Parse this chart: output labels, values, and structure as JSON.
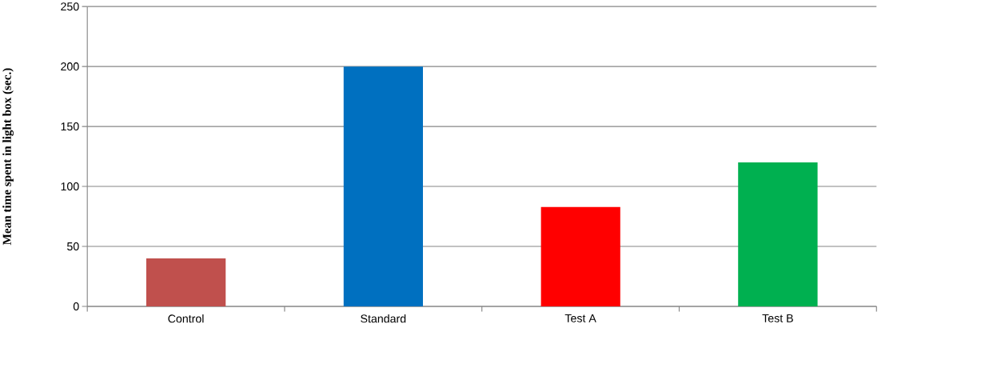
{
  "chart_data": {
    "type": "bar",
    "ylabel": "Mean  time spent  in light box (sec.)",
    "categories": [
      "Control",
      "Standard",
      "Test A",
      "Test B"
    ],
    "values": [
      40,
      200,
      83,
      120
    ],
    "colors": [
      "#c0504d",
      "#0070c0",
      "#ff0000",
      "#00b050"
    ],
    "ylim": [
      0,
      250
    ],
    "yticks": [
      0,
      50,
      100,
      150,
      200,
      250
    ],
    "grid": true
  }
}
